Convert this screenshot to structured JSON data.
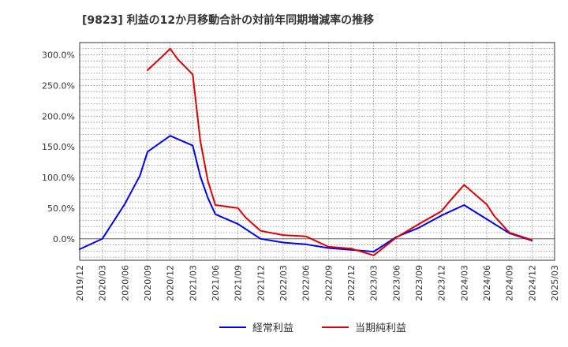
{
  "chart_data": {
    "type": "line",
    "title": "[9823]  利益の12か月移動合計の対前年同期増減率の推移",
    "xlabel": "",
    "ylabel": "",
    "ylim": [
      -35,
      320
    ],
    "y_ticks": [
      0,
      50,
      100,
      150,
      200,
      250,
      300
    ],
    "y_tick_labels": [
      "0.0%",
      "50.0%",
      "100.0%",
      "150.0%",
      "200.0%",
      "250.0%",
      "300.0%"
    ],
    "x_tick_labels": [
      "2019/12",
      "2020/03",
      "2020/06",
      "2020/09",
      "2020/12",
      "2021/03",
      "2021/06",
      "2021/09",
      "2021/12",
      "2022/03",
      "2022/06",
      "2022/09",
      "2022/12",
      "2023/03",
      "2023/06",
      "2023/09",
      "2023/12",
      "2024/03",
      "2024/06",
      "2024/09",
      "2024/12",
      "2025/03"
    ],
    "x_range_months": [
      0,
      63
    ],
    "series": [
      {
        "name": "経常利益",
        "color": "#0000ee",
        "points": [
          [
            0,
            -17
          ],
          [
            3,
            0
          ],
          [
            6,
            57
          ],
          [
            8,
            103
          ],
          [
            9,
            142
          ],
          [
            12,
            168
          ],
          [
            15,
            152
          ],
          [
            16,
            102
          ],
          [
            17,
            67
          ],
          [
            18,
            40
          ],
          [
            21,
            24
          ],
          [
            24,
            0
          ],
          [
            27,
            -6
          ],
          [
            30,
            -9
          ],
          [
            33,
            -15
          ],
          [
            36,
            -18
          ],
          [
            39,
            -21
          ],
          [
            42,
            3
          ],
          [
            45,
            18
          ],
          [
            48,
            38
          ],
          [
            51,
            55
          ],
          [
            54,
            32
          ],
          [
            57,
            9
          ],
          [
            60,
            -3
          ]
        ]
      },
      {
        "name": "当期純利益",
        "color": "#dd0000",
        "points": [
          [
            9,
            275
          ],
          [
            11,
            298
          ],
          [
            12,
            310
          ],
          [
            13,
            293
          ],
          [
            15,
            268
          ],
          [
            16,
            160
          ],
          [
            17,
            95
          ],
          [
            18,
            55
          ],
          [
            21,
            50
          ],
          [
            22,
            35
          ],
          [
            24,
            13
          ],
          [
            27,
            6
          ],
          [
            30,
            4
          ],
          [
            33,
            -13
          ],
          [
            36,
            -16
          ],
          [
            39,
            -27
          ],
          [
            42,
            2
          ],
          [
            45,
            24
          ],
          [
            48,
            45
          ],
          [
            49,
            60
          ],
          [
            51,
            88
          ],
          [
            54,
            56
          ],
          [
            55,
            37
          ],
          [
            57,
            10
          ],
          [
            60,
            -2
          ]
        ]
      }
    ],
    "legend_position": "bottom-center"
  }
}
